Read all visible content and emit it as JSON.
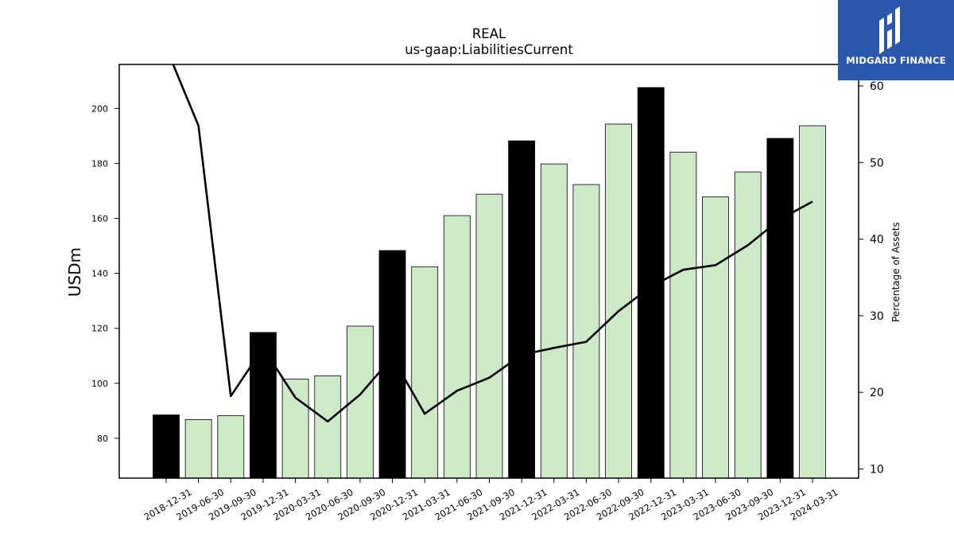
{
  "chart_data": {
    "type": "bar",
    "title": "REAL",
    "subtitle": "us-gaap:LiabilitiesCurrent",
    "ylabel": "USDm",
    "y2label": "Percentage of Assets",
    "categories": [
      "2018-12-31",
      "2019-06-30",
      "2019-09-30",
      "2019-12-31",
      "2020-03-31",
      "2020-06-30",
      "2020-09-30",
      "2020-12-31",
      "2021-03-31",
      "2021-06-30",
      "2021-09-30",
      "2021-12-31",
      "2022-03-31",
      "2022-06-30",
      "2022-09-30",
      "2022-12-31",
      "2023-03-31",
      "2023-06-30",
      "2023-09-30",
      "2023-12-31",
      "2024-03-31"
    ],
    "series": [
      {
        "type": "bar",
        "values": [
          88.5,
          86.8,
          88.2,
          118.5,
          101.5,
          102.7,
          120.8,
          148.3,
          142.4,
          161.0,
          168.8,
          188.2,
          179.8,
          172.3,
          194.3,
          207.6,
          184.1,
          167.8,
          176.9,
          189.1,
          193.7
        ],
        "highlight": [
          true,
          false,
          false,
          true,
          false,
          false,
          false,
          true,
          false,
          false,
          false,
          true,
          false,
          false,
          false,
          true,
          false,
          false,
          false,
          true,
          false
        ]
      },
      {
        "type": "line",
        "axis": "right",
        "values": [
          65.0,
          54.8,
          19.5,
          25.8,
          19.3,
          16.2,
          19.7,
          24.6,
          17.2,
          20.2,
          21.9,
          24.9,
          25.8,
          26.6,
          30.6,
          33.8,
          36.0,
          36.6,
          39.2,
          42.6,
          44.9
        ]
      }
    ],
    "ylim": [
      65.5,
      216
    ],
    "y2lim": [
      8.8,
      62.8
    ],
    "yticks": [
      80,
      100,
      120,
      140,
      160,
      180,
      200
    ],
    "y2ticks": [
      10,
      20,
      30,
      40,
      50,
      60
    ],
    "colors": {
      "bar_highlight": "#000000",
      "bar": "#cde9c8",
      "line": "#000000"
    },
    "grid": false
  },
  "logo": {
    "text": "MIDGARD FINANCE",
    "icon": "midgard-logo-icon",
    "background": "#2b57ad"
  }
}
